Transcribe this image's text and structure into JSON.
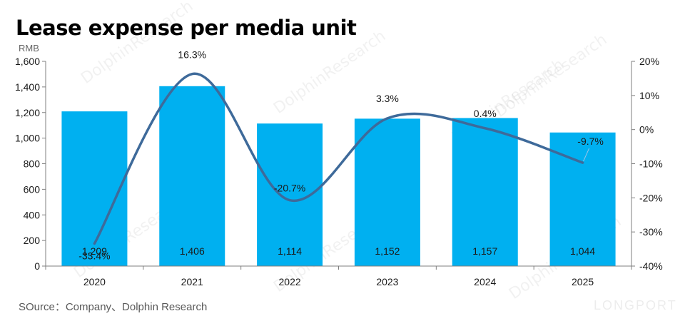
{
  "title": "Lease expense per media unit",
  "unit": "RMB",
  "source": "SOurce：Company、Dolphin Research",
  "watermark": "DolphinResearch",
  "brand_mark": "LONGPORT",
  "colors": {
    "bar": "#00B0F0",
    "line": "#3E6A9A",
    "axis": "#7f7f7f",
    "text": "#1a1a1a"
  },
  "chart_data": {
    "type": "bar+line",
    "categories": [
      "2020",
      "2021",
      "2022",
      "2023",
      "2024",
      "2025"
    ],
    "series": [
      {
        "type": "bar",
        "axis": "left",
        "values": [
          1209,
          1406,
          1114,
          1152,
          1157,
          1044
        ],
        "labels": [
          "1,209",
          "1,406",
          "1,114",
          "1,152",
          "1,157",
          "1,044"
        ]
      },
      {
        "type": "line",
        "axis": "right",
        "smooth": true,
        "values": [
          -33.4,
          16.3,
          -20.7,
          3.3,
          0.4,
          -9.7
        ],
        "labels": [
          "-33.4%",
          "16.3%",
          "-20.7%",
          "3.3%",
          "0.4%",
          "-9.7%"
        ]
      }
    ],
    "y_left": {
      "min": 0,
      "max": 1600,
      "ticks": [
        0,
        200,
        400,
        600,
        800,
        1000,
        1200,
        1400,
        1600
      ],
      "tick_labels": [
        "0",
        "200",
        "400",
        "600",
        "800",
        "1,000",
        "1,200",
        "1,400",
        "1,600"
      ]
    },
    "y_right": {
      "min": -40,
      "max": 20,
      "ticks": [
        -40,
        -30,
        -20,
        -10,
        0,
        10,
        20
      ],
      "tick_labels": [
        "-40%",
        "-30%",
        "-20%",
        "-10%",
        "0%",
        "10%",
        "20%"
      ]
    },
    "grid": false,
    "legend": "none"
  }
}
